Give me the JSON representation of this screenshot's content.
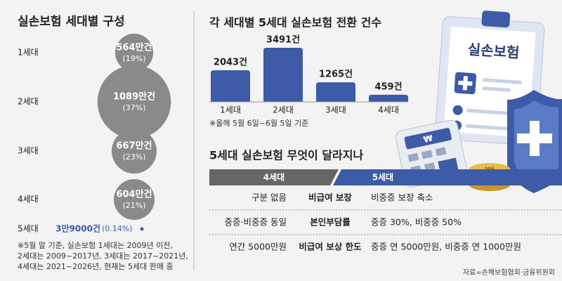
{
  "chart_data": [
    {
      "type": "bubble",
      "title": "실손보험 세대별 구성",
      "categories": [
        "1세대",
        "2세대",
        "3세대",
        "4세대",
        "5세대"
      ],
      "values": [
        564,
        1089,
        667,
        604,
        3.9
      ],
      "value_labels": [
        "564만건",
        "1089만건",
        "667만건",
        "604만건",
        "3만9000건"
      ],
      "share_labels": [
        "(19%)",
        "(37%)",
        "(23%)",
        "(21%)",
        "(0.14%)"
      ],
      "color": "#8a8a8a",
      "highlight_color": "#3d5ba6",
      "note": [
        "※5월 말 기준, 실손보험 1세대는 2009년 이전,",
        "2세대는 2009~2017년, 3세대는 2017~2021년,",
        "4세대는 2021~2026년, 현재는 5세대 판매 중"
      ]
    },
    {
      "type": "bar",
      "title": "각 세대별 5세대 실손보험 전환 건수",
      "categories": [
        "1세대",
        "2세대",
        "3세대",
        "4세대"
      ],
      "values": [
        2043,
        3491,
        1265,
        459
      ],
      "value_labels": [
        "2043건",
        "3491건",
        "1265건",
        "459건"
      ],
      "color": "#3d5ba6",
      "note": "※올해 5월 6일~6월 5일 기준"
    }
  ],
  "comparison": {
    "title": "5세대 실손보험 무엇이 달라지나",
    "headers": [
      "4세대",
      "5세대"
    ],
    "rows": [
      [
        "구분 없음",
        "비급여 보장",
        "비중증 보장 축소"
      ],
      [
        "중증·비중증 동일",
        "본인부담률",
        "중증 30%, 비중증 50%"
      ],
      [
        "연간 5000만원",
        "비급여 보상 한도",
        "중증 연 5000만원, 비중증 연 1000만원"
      ]
    ]
  },
  "illustration": {
    "clipboard_label": "실손보험",
    "currency": "₩"
  },
  "source": "자료=손해보험협회·금융위원회"
}
